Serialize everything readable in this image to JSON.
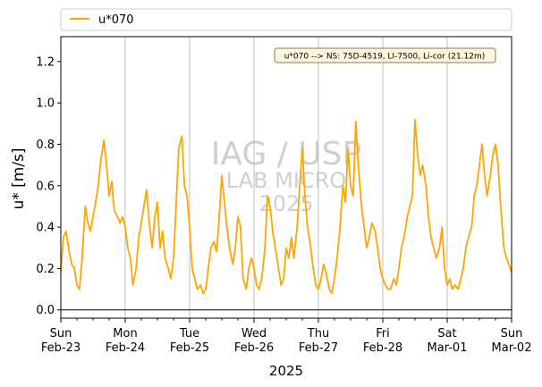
{
  "chart_data": {
    "type": "line",
    "xlabel": "2025",
    "ylabel": "u* [m/s]",
    "ylim": [
      -0.04,
      1.32
    ],
    "yticks": [
      0.0,
      0.2,
      0.4,
      0.6,
      0.8,
      1.0,
      1.2
    ],
    "xticks": [
      {
        "top": "Sun",
        "bottom": "Feb-23"
      },
      {
        "top": "Mon",
        "bottom": "Feb-24"
      },
      {
        "top": "Tue",
        "bottom": "Feb-25"
      },
      {
        "top": "Wed",
        "bottom": "Feb-26"
      },
      {
        "top": "Thu",
        "bottom": "Feb-27"
      },
      {
        "top": "Fri",
        "bottom": "Feb-28"
      },
      {
        "top": "Sat",
        "bottom": "Mar-01"
      },
      {
        "top": "Sun",
        "bottom": "Mar-02"
      }
    ],
    "xlim_days": [
      0,
      7
    ],
    "grid": "vertical at day boundaries",
    "legend": {
      "position": "top",
      "label": "u*070"
    },
    "annotation": "u*070 --> NS: 75D-4519, LI-7500, Li-cor (21.12m)",
    "watermark": [
      "IAG / USP",
      "LAB MICRO",
      "2025"
    ],
    "series": [
      {
        "name": "u*070",
        "color": "#FFA500",
        "days": [
          0.0,
          0.04,
          0.08,
          0.12,
          0.17,
          0.21,
          0.25,
          0.29,
          0.33,
          0.38,
          0.42,
          0.46,
          0.5,
          0.54,
          0.58,
          0.62,
          0.67,
          0.71,
          0.75,
          0.79,
          0.83,
          0.88,
          0.92,
          0.96,
          1.0,
          1.04,
          1.08,
          1.12,
          1.17,
          1.21,
          1.25,
          1.29,
          1.33,
          1.38,
          1.42,
          1.46,
          1.5,
          1.54,
          1.58,
          1.62,
          1.67,
          1.71,
          1.75,
          1.79,
          1.83,
          1.88,
          1.92,
          1.96,
          2.0,
          2.04,
          2.08,
          2.12,
          2.17,
          2.21,
          2.25,
          2.29,
          2.33,
          2.38,
          2.42,
          2.46,
          2.5,
          2.54,
          2.58,
          2.62,
          2.67,
          2.71,
          2.75,
          2.79,
          2.83,
          2.88,
          2.92,
          2.96,
          3.0,
          3.04,
          3.08,
          3.12,
          3.17,
          3.21,
          3.25,
          3.29,
          3.33,
          3.38,
          3.42,
          3.46,
          3.5,
          3.54,
          3.58,
          3.62,
          3.67,
          3.71,
          3.75,
          3.79,
          3.83,
          3.88,
          3.92,
          3.96,
          4.0,
          4.04,
          4.08,
          4.12,
          4.17,
          4.21,
          4.25,
          4.29,
          4.33,
          4.38,
          4.42,
          4.46,
          4.5,
          4.54,
          4.58,
          4.62,
          4.67,
          4.71,
          4.75,
          4.79,
          4.83,
          4.88,
          4.92,
          4.96,
          5.0,
          5.04,
          5.08,
          5.12,
          5.17,
          5.21,
          5.25,
          5.29,
          5.33,
          5.38,
          5.42,
          5.46,
          5.5,
          5.54,
          5.58,
          5.62,
          5.67,
          5.71,
          5.75,
          5.79,
          5.83,
          5.88,
          5.92,
          5.96,
          6.0,
          6.04,
          6.08,
          6.12,
          6.17,
          6.21,
          6.25,
          6.29,
          6.33,
          6.38,
          6.42,
          6.46,
          6.5,
          6.54,
          6.58,
          6.62,
          6.67,
          6.71,
          6.75,
          6.79,
          6.83,
          6.88,
          6.92,
          6.96,
          7.0
        ],
        "values": [
          0.18,
          0.35,
          0.38,
          0.3,
          0.22,
          0.2,
          0.12,
          0.1,
          0.25,
          0.5,
          0.42,
          0.38,
          0.45,
          0.52,
          0.6,
          0.72,
          0.82,
          0.7,
          0.55,
          0.62,
          0.48,
          0.45,
          0.42,
          0.45,
          0.4,
          0.3,
          0.25,
          0.12,
          0.2,
          0.35,
          0.42,
          0.5,
          0.58,
          0.4,
          0.3,
          0.45,
          0.52,
          0.3,
          0.38,
          0.25,
          0.2,
          0.15,
          0.25,
          0.5,
          0.78,
          0.84,
          0.6,
          0.55,
          0.4,
          0.2,
          0.15,
          0.1,
          0.12,
          0.08,
          0.1,
          0.2,
          0.3,
          0.33,
          0.28,
          0.45,
          0.65,
          0.52,
          0.4,
          0.3,
          0.22,
          0.3,
          0.45,
          0.4,
          0.15,
          0.1,
          0.2,
          0.25,
          0.2,
          0.12,
          0.1,
          0.15,
          0.3,
          0.55,
          0.5,
          0.38,
          0.3,
          0.2,
          0.12,
          0.15,
          0.3,
          0.25,
          0.35,
          0.25,
          0.4,
          0.6,
          0.78,
          0.55,
          0.4,
          0.3,
          0.2,
          0.12,
          0.1,
          0.15,
          0.22,
          0.18,
          0.1,
          0.08,
          0.15,
          0.25,
          0.38,
          0.6,
          0.52,
          0.78,
          0.6,
          0.55,
          0.91,
          0.7,
          0.5,
          0.4,
          0.3,
          0.35,
          0.42,
          0.38,
          0.3,
          0.2,
          0.15,
          0.12,
          0.1,
          0.1,
          0.15,
          0.12,
          0.2,
          0.3,
          0.35,
          0.45,
          0.5,
          0.55,
          0.92,
          0.75,
          0.65,
          0.7,
          0.6,
          0.45,
          0.35,
          0.3,
          0.25,
          0.3,
          0.4,
          0.2,
          0.12,
          0.15,
          0.1,
          0.12,
          0.1,
          0.15,
          0.2,
          0.3,
          0.35,
          0.4,
          0.55,
          0.6,
          0.7,
          0.8,
          0.65,
          0.55,
          0.65,
          0.75,
          0.8,
          0.7,
          0.5,
          0.3,
          0.25,
          0.22,
          0.18
        ]
      }
    ]
  }
}
